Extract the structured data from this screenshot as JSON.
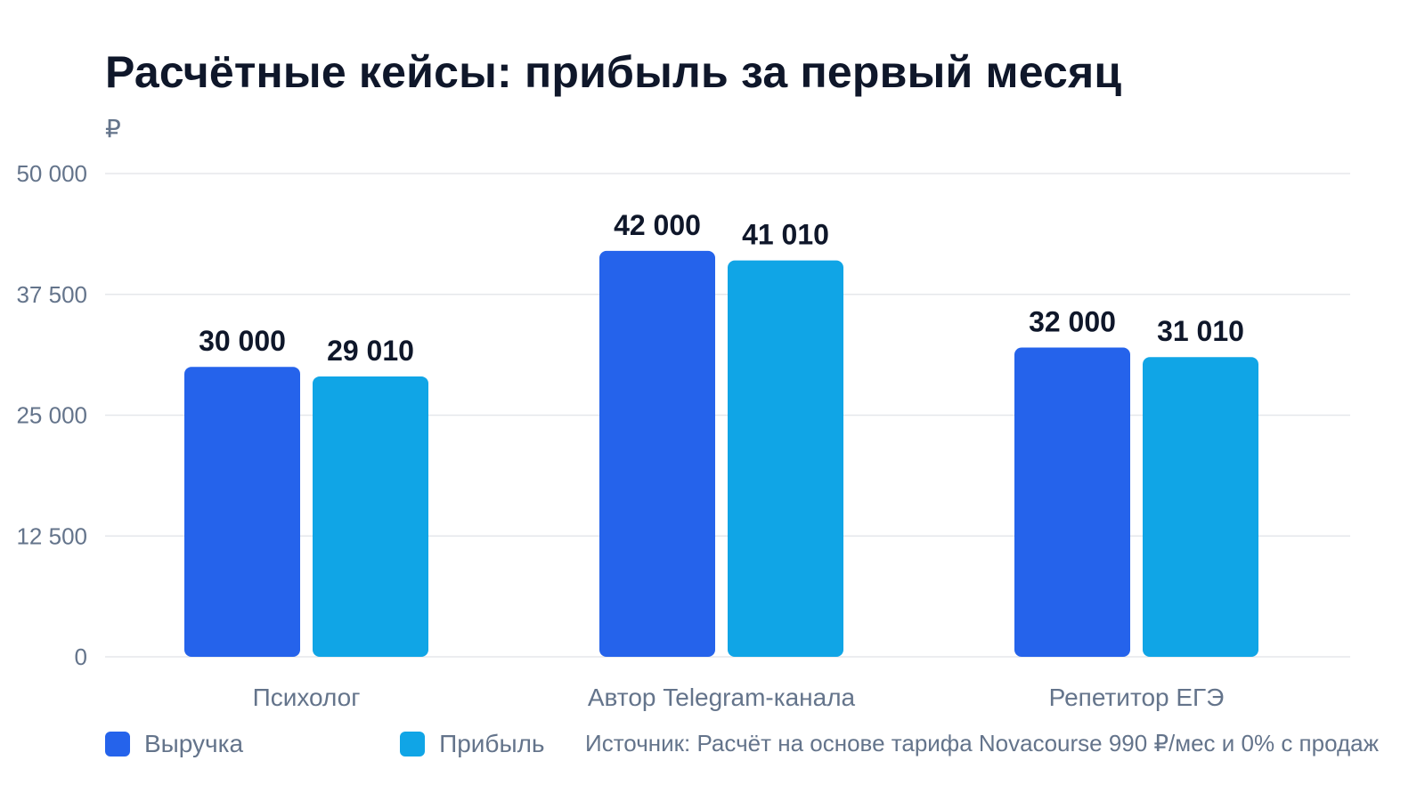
{
  "colors": {
    "revenue": "#2563eb",
    "profit": "#10a5e6",
    "grid": "#e5e7eb",
    "axis_text": "#64748b",
    "label_text": "#0f172a"
  },
  "header": {
    "title": "Расчётные кейсы: прибыль за первый месяц",
    "unit": "₽"
  },
  "source": {
    "text": "Источник: Расчёт на основе тарифа Novacourse 990 ₽/мес и 0% с продаж"
  },
  "chart_data": {
    "type": "bar",
    "title": "Расчётные кейсы: прибыль за первый месяц",
    "ylabel": "₽",
    "xlabel": "",
    "ylim": [
      0,
      50000
    ],
    "yticks": [
      "0",
      "12 500",
      "25 000",
      "37 500",
      "50 000"
    ],
    "ytick_values": [
      0,
      12500,
      25000,
      37500,
      50000
    ],
    "grid": true,
    "legend_position": "bottom-left",
    "categories": [
      "Психолог",
      "Автор Telegram-канала",
      "Репетитор ЕГЭ"
    ],
    "series": [
      {
        "name": "Выручка",
        "values": [
          30000,
          42000,
          32000
        ],
        "labels": [
          "30 000",
          "42 000",
          "32 000"
        ]
      },
      {
        "name": "Прибыль",
        "values": [
          29010,
          41010,
          31010
        ],
        "labels": [
          "29 010",
          "41 010",
          "31 010"
        ]
      }
    ]
  }
}
